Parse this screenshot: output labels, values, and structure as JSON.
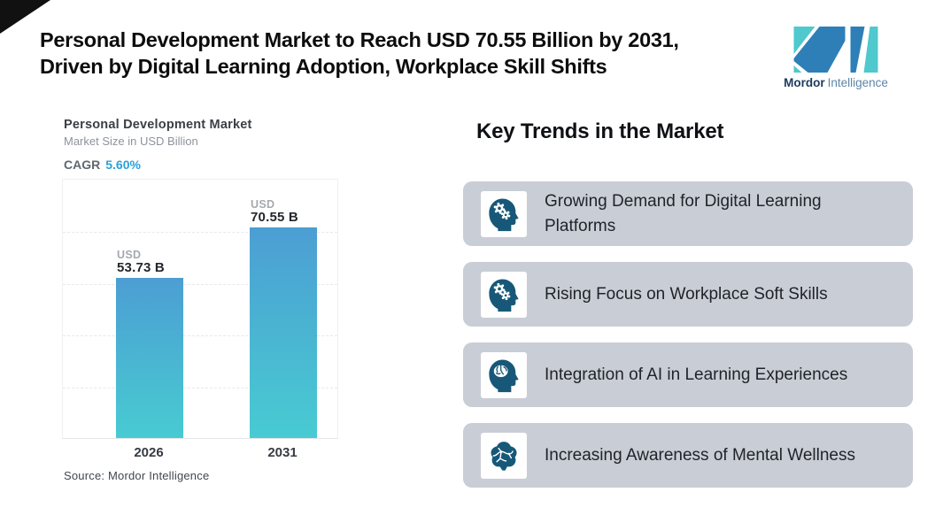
{
  "header": {
    "title_line1": "Personal Development Market to Reach USD 70.55 Billion by 2031,",
    "title_line2": "Driven by Digital Learning Adoption, Workplace Skill Shifts",
    "logo": {
      "brand_bold": "Mordor",
      "brand_light": "Intelligence",
      "mark_blue": "#2e7fb8",
      "mark_teal": "#4fc8ce"
    }
  },
  "chart": {
    "title": "Personal Development Market",
    "subtitle": "Market Size in USD Billion",
    "cagr_label": "CAGR",
    "cagr_value": "5.60%",
    "source": "Source: Mordor Intelligence",
    "bar_top_color": "#4c9ed3",
    "bar_bottom_color": "#48cbd2"
  },
  "chart_data": {
    "type": "bar",
    "title": "Personal Development Market",
    "ylabel": "Market Size in USD Billion",
    "cagr": "5.60%",
    "categories": [
      "2026",
      "2031"
    ],
    "values": [
      53.73,
      70.55
    ],
    "value_labels": [
      {
        "prefix": "USD",
        "value": "53.73 B"
      },
      {
        "prefix": "USD",
        "value": "70.55 B"
      }
    ],
    "ylim": [
      0,
      87
    ],
    "grid": "horizontal-dashed",
    "legend": "none"
  },
  "trends": {
    "heading": "Key Trends in the Market",
    "card_bg": "#c9cdd5",
    "icon_color": "#175878",
    "items": [
      {
        "icon": "head-gears-icon",
        "label": "Growing Demand for Digital Learning Platforms"
      },
      {
        "icon": "head-gears-icon",
        "label": "Rising Focus on Workplace Soft Skills"
      },
      {
        "icon": "head-brain-ai-icon",
        "label": "Integration of AI in Learning Experiences"
      },
      {
        "icon": "brain-wellness-icon",
        "label": "Increasing Awareness of Mental Wellness"
      }
    ]
  }
}
